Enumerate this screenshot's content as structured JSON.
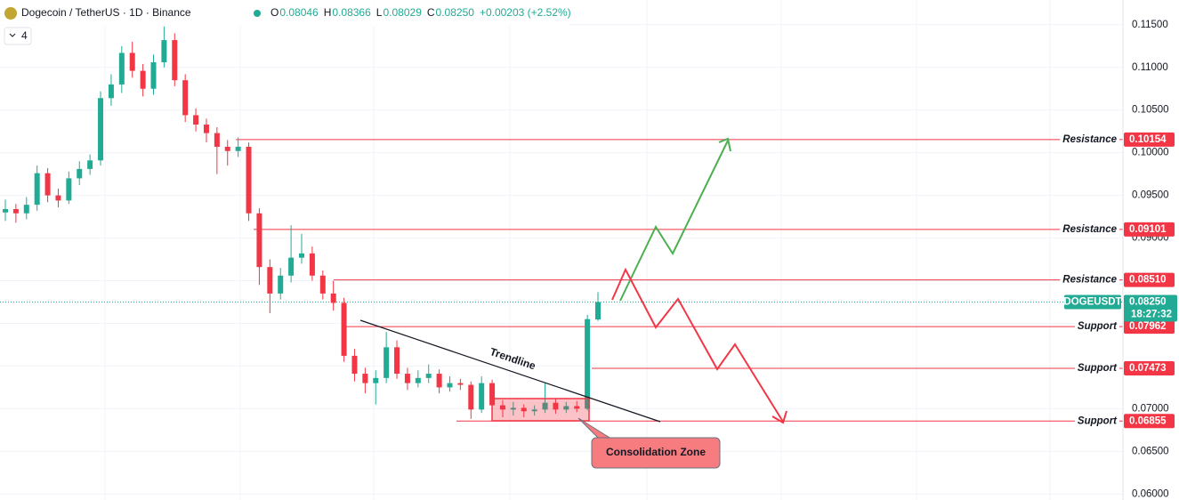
{
  "chart_data": {
    "type": "candlestick",
    "title": "Dogecoin / TetherUS · 1D · Binance",
    "ohlc_legend": [
      {
        "key": "O",
        "value": "0.08046"
      },
      {
        "key": "H",
        "value": "0.08366"
      },
      {
        "key": "L",
        "value": "0.08029"
      },
      {
        "key": "C",
        "value": "0.08250"
      }
    ],
    "change": "+0.00203 (+2.52%)",
    "indicator_count": "4",
    "up_color": "#22ab94",
    "down_color": "#f23645",
    "ylim": [
      0.0593,
      0.1179
    ],
    "yticks": [
      {
        "value": 0.115,
        "label": "0.11500"
      },
      {
        "value": 0.11,
        "label": "0.11000"
      },
      {
        "value": 0.105,
        "label": "0.10500"
      },
      {
        "value": 0.1,
        "label": "0.10000"
      },
      {
        "value": 0.095,
        "label": "0.09500"
      },
      {
        "value": 0.09,
        "label": "0.09000"
      },
      {
        "value": 0.085,
        "label": "0.08500"
      },
      {
        "value": 0.08,
        "label": "0.08000"
      },
      {
        "value": 0.075,
        "label": "0.07500"
      },
      {
        "value": 0.07,
        "label": "0.07000"
      },
      {
        "value": 0.065,
        "label": "0.06500"
      },
      {
        "value": 0.06,
        "label": "0.06000"
      }
    ],
    "grid": true,
    "series": [
      {
        "name": "DOGEUSDT",
        "values": [
          [
            0.093,
            0.0945,
            0.092,
            0.0934
          ],
          [
            0.0934,
            0.094,
            0.0918,
            0.0929
          ],
          [
            0.0929,
            0.0948,
            0.0922,
            0.0939
          ],
          [
            0.0939,
            0.0985,
            0.0932,
            0.0976
          ],
          [
            0.0976,
            0.0982,
            0.0942,
            0.095
          ],
          [
            0.095,
            0.0958,
            0.0936,
            0.0944
          ],
          [
            0.0944,
            0.0978,
            0.094,
            0.097
          ],
          [
            0.097,
            0.099,
            0.0962,
            0.0981
          ],
          [
            0.0981,
            0.0998,
            0.0974,
            0.0991
          ],
          [
            0.0991,
            0.1072,
            0.0985,
            0.1064
          ],
          [
            0.1064,
            0.1092,
            0.1055,
            0.108
          ],
          [
            0.108,
            0.1125,
            0.107,
            0.1117
          ],
          [
            0.1117,
            0.113,
            0.1088,
            0.1096
          ],
          [
            0.1096,
            0.1104,
            0.1066,
            0.1075
          ],
          [
            0.1075,
            0.1115,
            0.1068,
            0.1106
          ],
          [
            0.1106,
            0.115,
            0.11,
            0.1132
          ],
          [
            0.1132,
            0.114,
            0.1078,
            0.1085
          ],
          [
            0.1085,
            0.1092,
            0.1036,
            0.1044
          ],
          [
            0.1044,
            0.1052,
            0.1025,
            0.1033
          ],
          [
            0.1033,
            0.104,
            0.1012,
            0.1023
          ],
          [
            0.1023,
            0.103,
            0.0975,
            0.1007
          ],
          [
            0.1007,
            0.1015,
            0.0985,
            0.1002
          ],
          [
            0.1002,
            0.1018,
            0.0995,
            0.1007
          ],
          [
            0.1007,
            0.1012,
            0.092,
            0.0929
          ],
          [
            0.0929,
            0.0935,
            0.0845,
            0.0866
          ],
          [
            0.0866,
            0.0875,
            0.0812,
            0.0835
          ],
          [
            0.0835,
            0.0865,
            0.0828,
            0.0856
          ],
          [
            0.0856,
            0.0915,
            0.0848,
            0.0877
          ],
          [
            0.0877,
            0.0905,
            0.087,
            0.0882
          ],
          [
            0.0882,
            0.089,
            0.085,
            0.0856
          ],
          [
            0.0856,
            0.0862,
            0.0828,
            0.0835
          ],
          [
            0.0835,
            0.085,
            0.0815,
            0.0824
          ],
          [
            0.0824,
            0.083,
            0.0755,
            0.0762
          ],
          [
            0.0762,
            0.077,
            0.0732,
            0.0741
          ],
          [
            0.0741,
            0.0748,
            0.0718,
            0.073
          ],
          [
            0.073,
            0.0745,
            0.0705,
            0.0736
          ],
          [
            0.0736,
            0.079,
            0.073,
            0.0772
          ],
          [
            0.0772,
            0.078,
            0.0735,
            0.0741
          ],
          [
            0.0741,
            0.0748,
            0.0722,
            0.073
          ],
          [
            0.073,
            0.0745,
            0.0725,
            0.0736
          ],
          [
            0.0736,
            0.0752,
            0.073,
            0.0741
          ],
          [
            0.0741,
            0.0746,
            0.0718,
            0.0725
          ],
          [
            0.0725,
            0.0738,
            0.072,
            0.073
          ],
          [
            0.073,
            0.0735,
            0.0722,
            0.0728
          ],
          [
            0.0728,
            0.0732,
            0.0688,
            0.0699
          ],
          [
            0.0699,
            0.0738,
            0.0695,
            0.073
          ],
          [
            0.073,
            0.0734,
            0.0698,
            0.0704
          ],
          [
            0.0704,
            0.071,
            0.069,
            0.0699
          ],
          [
            0.0699,
            0.0708,
            0.0692,
            0.0701
          ],
          [
            0.0701,
            0.0705,
            0.069,
            0.0697
          ],
          [
            0.0697,
            0.0704,
            0.0692,
            0.0699
          ],
          [
            0.0699,
            0.073,
            0.0695,
            0.0707
          ],
          [
            0.0707,
            0.0712,
            0.0694,
            0.0699
          ],
          [
            0.0699,
            0.0708,
            0.0695,
            0.0703
          ],
          [
            0.0703,
            0.0709,
            0.0696,
            0.07
          ],
          [
            0.07,
            0.081,
            0.0698,
            0.0805
          ],
          [
            0.08046,
            0.08366,
            0.08029,
            0.0825
          ]
        ]
      }
    ],
    "levels": [
      {
        "name": "Resistance",
        "value": 0.10154,
        "label": "0.10154"
      },
      {
        "name": "Resistance",
        "value": 0.09101,
        "label": "0.09101"
      },
      {
        "name": "Resistance",
        "value": 0.0851,
        "label": "0.08510"
      },
      {
        "name": "Support",
        "value": 0.07962,
        "label": "0.07962"
      },
      {
        "name": "Support",
        "value": 0.07473,
        "label": "0.07473"
      },
      {
        "name": "Support",
        "value": 0.06855,
        "label": "0.06855"
      }
    ],
    "last_price": {
      "symbol": "DOGEUSDT",
      "value": 0.0825,
      "label": "0.08250",
      "countdown": "18:27:32"
    },
    "annotations": {
      "trendline": "Trendline",
      "zone": "Consolidation Zone"
    }
  }
}
